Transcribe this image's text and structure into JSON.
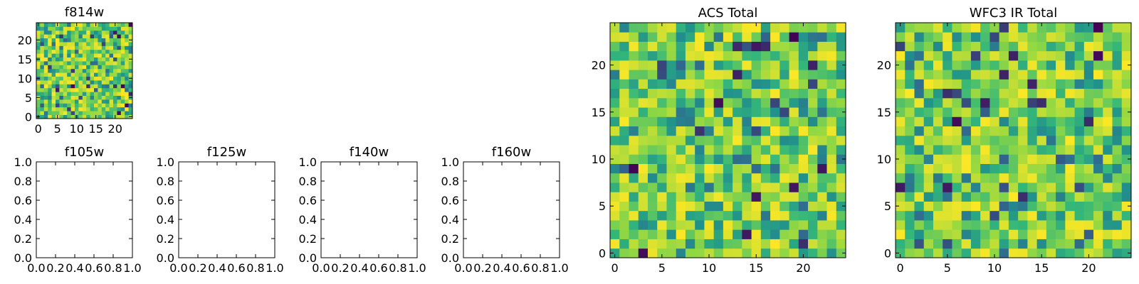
{
  "chart_data": [
    {
      "type": "heatmap",
      "title": "f814w",
      "grid": false,
      "xlim": [
        -0.5,
        24.5
      ],
      "ylim": [
        -0.5,
        24.5
      ],
      "xticks": [
        0,
        5,
        10,
        15,
        20
      ],
      "yticks": [
        0,
        5,
        10,
        15,
        20
      ],
      "xtick_labels": [
        "0",
        "5",
        "10",
        "15",
        "20"
      ],
      "ytick_labels": [
        "0",
        "5",
        "10",
        "15",
        "20"
      ],
      "colormap": [
        "#440154",
        "#31688e",
        "#21918c",
        "#35b779",
        "#8fd744",
        "#fde725"
      ],
      "noise_seed": 814,
      "values": []
    },
    {
      "type": "heatmap",
      "title": "f105w",
      "grid": false,
      "xlim": [
        0,
        1
      ],
      "ylim": [
        0,
        1
      ],
      "xticks": [
        0,
        0.2,
        0.4,
        0.6,
        0.8,
        1.0
      ],
      "yticks": [
        0,
        0.2,
        0.4,
        0.6,
        0.8,
        1.0
      ],
      "xtick_labels": [
        "0.0",
        "0.2",
        "0.4",
        "0.6",
        "0.8",
        "1.0"
      ],
      "ytick_labels": [
        "0.0",
        "0.2",
        "0.4",
        "0.6",
        "0.8",
        "1.0"
      ],
      "values": []
    },
    {
      "type": "heatmap",
      "title": "f125w",
      "grid": false,
      "xlim": [
        0,
        1
      ],
      "ylim": [
        0,
        1
      ],
      "xticks": [
        0,
        0.2,
        0.4,
        0.6,
        0.8,
        1.0
      ],
      "yticks": [
        0,
        0.2,
        0.4,
        0.6,
        0.8,
        1.0
      ],
      "xtick_labels": [
        "0.0",
        "0.2",
        "0.4",
        "0.6",
        "0.8",
        "1.0"
      ],
      "ytick_labels": [
        "0.0",
        "0.2",
        "0.4",
        "0.6",
        "0.8",
        "1.0"
      ],
      "values": []
    },
    {
      "type": "heatmap",
      "title": "f140w",
      "grid": false,
      "xlim": [
        0,
        1
      ],
      "ylim": [
        0,
        1
      ],
      "xticks": [
        0,
        0.2,
        0.4,
        0.6,
        0.8,
        1.0
      ],
      "yticks": [
        0,
        0.2,
        0.4,
        0.6,
        0.8,
        1.0
      ],
      "xtick_labels": [
        "0.0",
        "0.2",
        "0.4",
        "0.6",
        "0.8",
        "1.0"
      ],
      "ytick_labels": [
        "0.0",
        "0.2",
        "0.4",
        "0.6",
        "0.8",
        "1.0"
      ],
      "values": []
    },
    {
      "type": "heatmap",
      "title": "f160w",
      "grid": false,
      "xlim": [
        0,
        1
      ],
      "ylim": [
        0,
        1
      ],
      "xticks": [
        0,
        0.2,
        0.4,
        0.6,
        0.8,
        1.0
      ],
      "yticks": [
        0,
        0.2,
        0.4,
        0.6,
        0.8,
        1.0
      ],
      "xtick_labels": [
        "0.0",
        "0.2",
        "0.4",
        "0.6",
        "0.8",
        "1.0"
      ],
      "ytick_labels": [
        "0.0",
        "0.2",
        "0.4",
        "0.6",
        "0.8",
        "1.0"
      ],
      "values": []
    },
    {
      "type": "heatmap",
      "title": "ACS Total",
      "grid": false,
      "xlim": [
        -0.5,
        24.5
      ],
      "ylim": [
        -0.5,
        24.5
      ],
      "xticks": [
        0,
        5,
        10,
        15,
        20
      ],
      "yticks": [
        0,
        5,
        10,
        15,
        20
      ],
      "xtick_labels": [
        "0",
        "5",
        "10",
        "15",
        "20"
      ],
      "ytick_labels": [
        "0",
        "5",
        "10",
        "15",
        "20"
      ],
      "colormap": [
        "#440154",
        "#31688e",
        "#21918c",
        "#35b779",
        "#8fd744",
        "#fde725"
      ],
      "noise_seed": 1201,
      "values": []
    },
    {
      "type": "heatmap",
      "title": "WFC3 IR Total",
      "grid": false,
      "xlim": [
        -0.5,
        24.5
      ],
      "ylim": [
        -0.5,
        24.5
      ],
      "xticks": [
        0,
        5,
        10,
        15,
        20
      ],
      "yticks": [
        0,
        5,
        10,
        15,
        20
      ],
      "xtick_labels": [
        "0",
        "5",
        "10",
        "15",
        "20"
      ],
      "ytick_labels": [
        "0",
        "5",
        "10",
        "15",
        "20"
      ],
      "colormap": [
        "#440154",
        "#31688e",
        "#21918c",
        "#35b779",
        "#8fd744",
        "#fde725"
      ],
      "noise_seed": 3307,
      "values": []
    }
  ]
}
